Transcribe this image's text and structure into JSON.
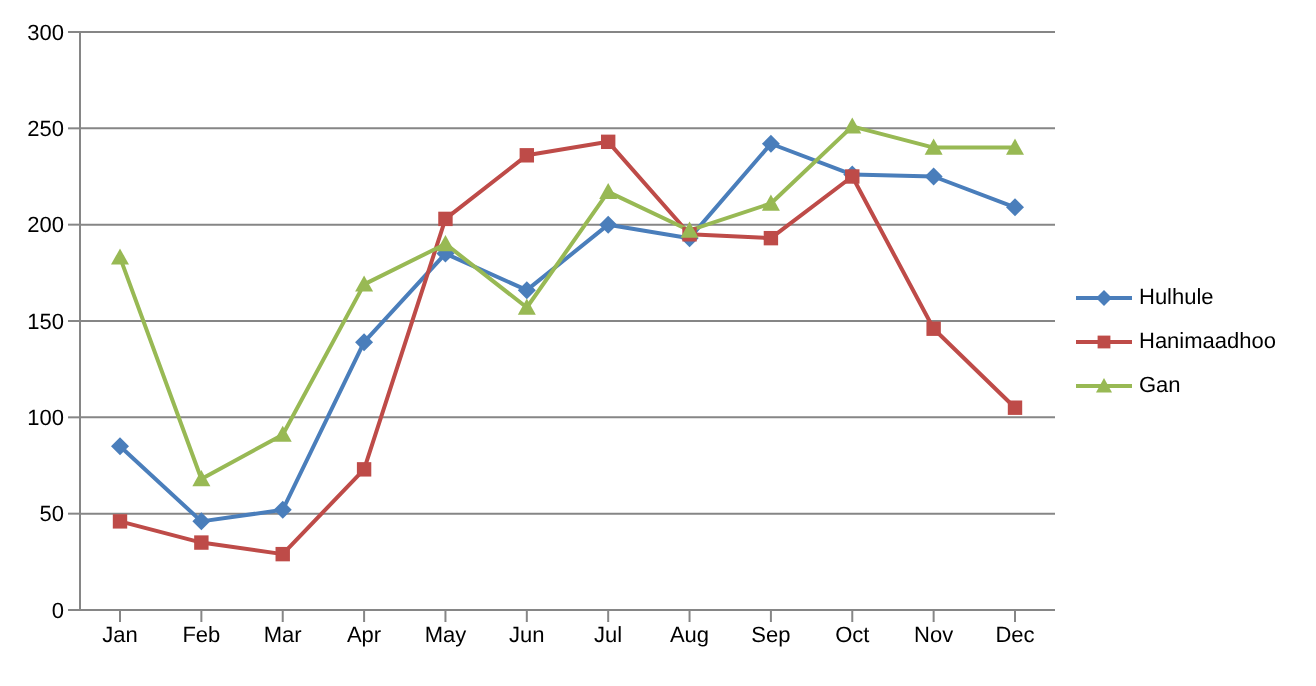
{
  "chart_data": {
    "type": "line",
    "categories": [
      "Jan",
      "Feb",
      "Mar",
      "Apr",
      "May",
      "Jun",
      "Jul",
      "Aug",
      "Sep",
      "Oct",
      "Nov",
      "Dec"
    ],
    "series": [
      {
        "name": "Hulhule",
        "color": "#4a7ebb",
        "marker": "diamond",
        "values": [
          85,
          46,
          52,
          139,
          185,
          166,
          200,
          193,
          242,
          226,
          225,
          209
        ]
      },
      {
        "name": "Hanimaadhoo",
        "color": "#be4b48",
        "marker": "square",
        "values": [
          46,
          35,
          29,
          73,
          203,
          236,
          243,
          195,
          193,
          225,
          146,
          105
        ]
      },
      {
        "name": "Gan",
        "color": "#98b954",
        "marker": "triangle",
        "values": [
          183,
          68,
          91,
          169,
          190,
          157,
          217,
          197,
          211,
          251,
          240,
          240
        ]
      }
    ],
    "ylim": [
      0,
      300
    ],
    "yticks": [
      0,
      50,
      100,
      150,
      200,
      250,
      300
    ],
    "grid": "y",
    "legend": "right",
    "line_style": "solid"
  }
}
